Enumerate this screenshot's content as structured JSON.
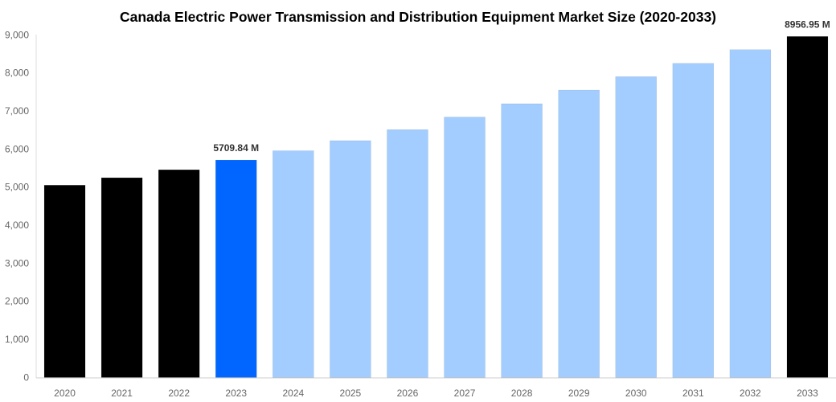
{
  "chart_data": {
    "type": "bar",
    "title": "Canada Electric Power Transmission and Distribution Equipment Market Size (2020-2033)",
    "xlabel": "",
    "ylabel": "",
    "ylim": [
      0,
      9000
    ],
    "yticks": [
      "0",
      "1,000",
      "2,000",
      "3,000",
      "4,000",
      "5,000",
      "6,000",
      "7,000",
      "8,000",
      "9,000"
    ],
    "grid": false,
    "categories": [
      "2020",
      "2021",
      "2022",
      "2023",
      "2024",
      "2025",
      "2026",
      "2027",
      "2028",
      "2029",
      "2030",
      "2031",
      "2032",
      "2033"
    ],
    "values": [
      5050,
      5245,
      5455,
      5709.84,
      5955,
      6220,
      6510,
      6840,
      7190,
      7548,
      7901,
      8251,
      8610,
      8956.95
    ],
    "bar_colors": [
      "#000000",
      "#000000",
      "#000000",
      "#0066ff",
      "#a2cdfe",
      "#a2cdfe",
      "#a2cdfe",
      "#a2cdfe",
      "#a2cdfe",
      "#a2cdfe",
      "#a2cdfe",
      "#a2cdfe",
      "#a2cdfe",
      "#000000"
    ],
    "data_labels": [
      {
        "category": "2023",
        "text": "5709.84 M"
      },
      {
        "category": "2033",
        "text": "8956.95 M"
      }
    ]
  }
}
